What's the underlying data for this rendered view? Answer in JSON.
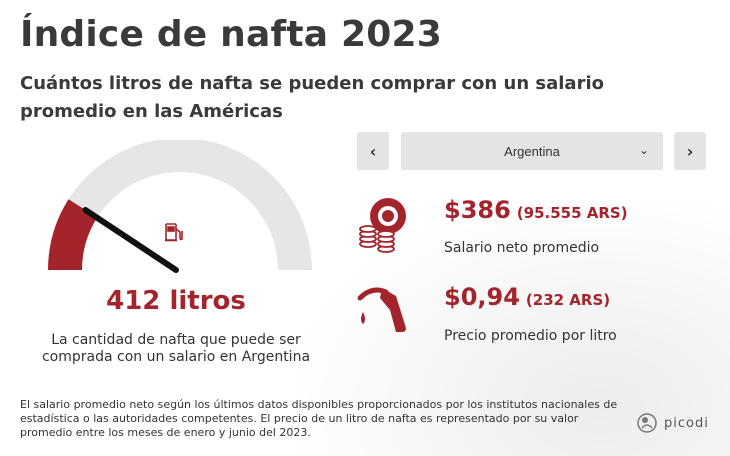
{
  "header": {
    "title": "Índice de nafta 2023",
    "subtitle": "Cuántos litros de nafta se pueden comprar con un salario promedio en las Américas"
  },
  "gauge": {
    "liters": "412 litros",
    "description": "La cantidad de nafta que puede ser comprada con un salario en Argentina",
    "fill_fraction": 0.18,
    "track_color": "#e6e6e6",
    "fill_color": "#a3242b",
    "needle_color": "#111111",
    "fuel_icon": "fuel-pump-icon"
  },
  "selector": {
    "prev_symbol": "‹",
    "next_symbol": "›",
    "country": "Argentina",
    "chevron_symbol": "⌄"
  },
  "stats": {
    "salary": {
      "icon": "coins-icon",
      "value": "$386",
      "local": "(95.555 ARS)",
      "label": "Salario neto promedio"
    },
    "price": {
      "icon": "fuel-nozzle-icon",
      "value": "$0,94",
      "local": "(232 ARS)",
      "label": "Precio promedio por litro"
    }
  },
  "footer": {
    "note": "El salario promedio neto según los últimos datos disponibles proporcionados por los institutos nacionales de estadística o las autoridades competentes. El precio de un litro de nafta es representado por su valor promedio entre los meses de enero y junio del 2023.",
    "brand": "picodi"
  },
  "colors": {
    "accent": "#a3242b",
    "text": "#333333",
    "button_bg": "#e4e4e4"
  }
}
